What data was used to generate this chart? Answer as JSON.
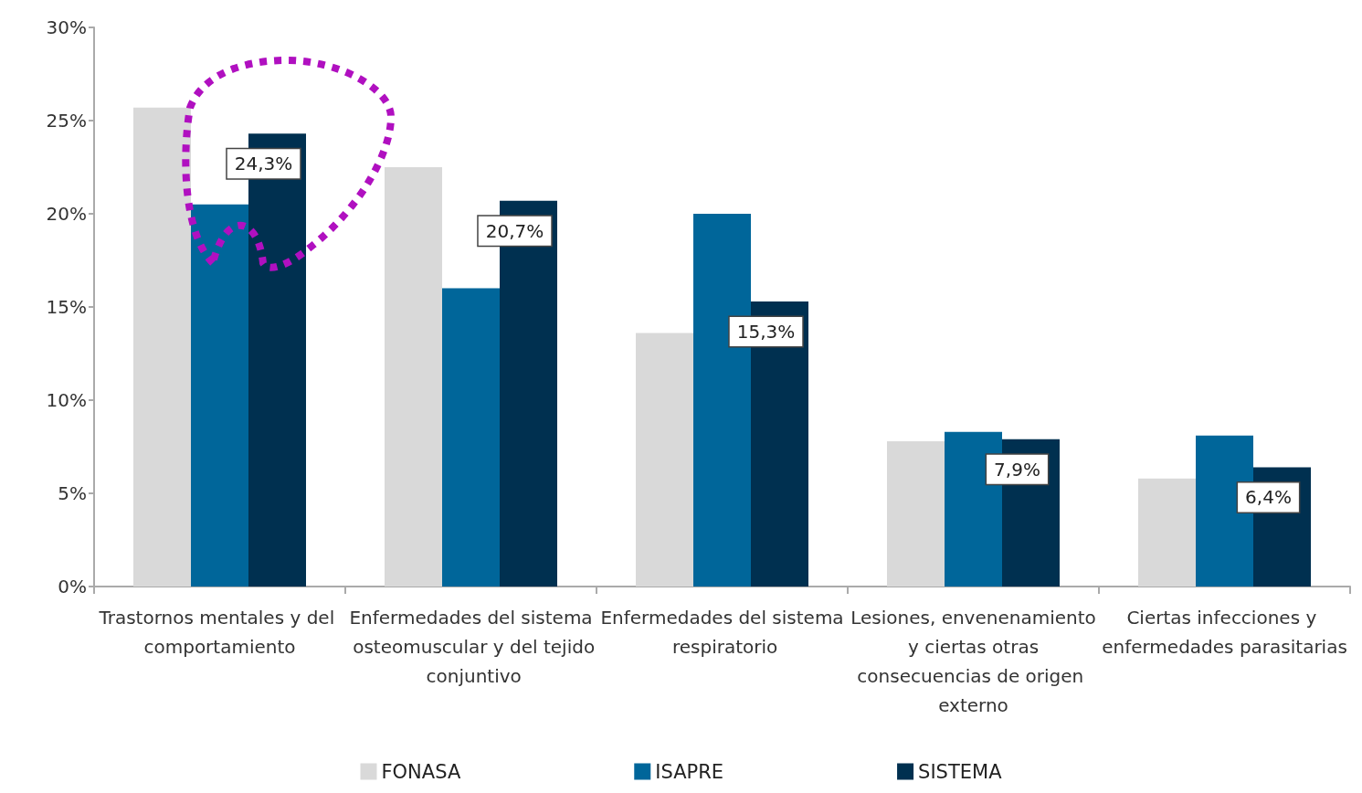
{
  "chart_data": {
    "type": "bar",
    "categories": [
      "Trastornos mentales y del comportamiento",
      "Enfermedades del sistema osteomuscular y del tejido conjuntivo",
      "Enfermedades del sistema respiratorio",
      "Lesiones, envenenamiento y ciertas otras consecuencias de origen externo",
      "Ciertas infecciones y enfermedades parasitarias"
    ],
    "series": [
      {
        "name": "FONASA",
        "color": "#d9d9d9",
        "values": [
          25.7,
          22.5,
          13.6,
          7.8,
          5.8
        ]
      },
      {
        "name": "ISAPRE",
        "color": "#00669a",
        "values": [
          20.5,
          16.0,
          20.0,
          8.3,
          8.1
        ]
      },
      {
        "name": "SISTEMA",
        "color": "#003050",
        "values": [
          24.3,
          20.7,
          15.3,
          7.9,
          6.4
        ],
        "value_labels": [
          "24,3%",
          "20,7%",
          "15,3%",
          "7,9%",
          "6,4%"
        ]
      }
    ],
    "ylim": [
      0,
      30
    ],
    "yticks": [
      {
        "value": 0,
        "label": "0%"
      },
      {
        "value": 5,
        "label": "5%"
      },
      {
        "value": 10,
        "label": "10%"
      },
      {
        "value": 15,
        "label": "15%"
      },
      {
        "value": 20,
        "label": "20%"
      },
      {
        "value": 25,
        "label": "25%"
      },
      {
        "value": 30,
        "label": "30%"
      }
    ],
    "grid": false,
    "legend": "bottom"
  }
}
